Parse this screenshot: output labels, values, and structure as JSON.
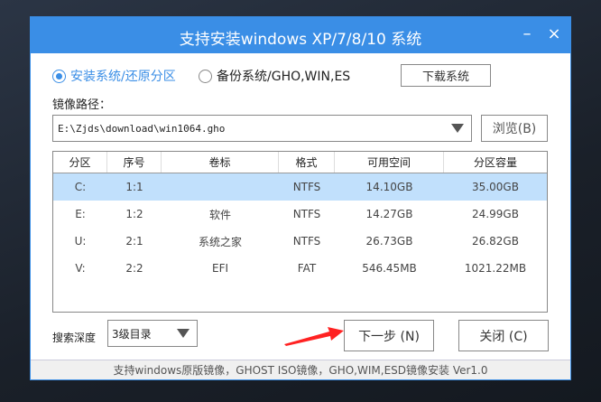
{
  "window": {
    "title": "支持安装windows XP/7/8/10 系统",
    "minimize": "–",
    "close": "×",
    "accent": "#3a8ee6"
  },
  "mode": {
    "install_label": "安装系统/还原分区",
    "backup_label": "备份系统/GHO,WIN,ES",
    "selected": "install"
  },
  "download_button": "下载系统",
  "image_path": {
    "label": "镜像路径：",
    "value": "E:\\Zjds\\download\\win1064.gho",
    "browse": "浏览(B)"
  },
  "table": {
    "headers": [
      "分区",
      "序号",
      "卷标",
      "格式",
      "可用空间",
      "分区容量"
    ],
    "rows": [
      [
        "C:",
        "1:1",
        "",
        "NTFS",
        "14.10GB",
        "35.00GB"
      ],
      [
        "E:",
        "1:2",
        "软件",
        "NTFS",
        "14.27GB",
        "24.99GB"
      ],
      [
        "U:",
        "2:1",
        "系统之家",
        "NTFS",
        "26.73GB",
        "26.82GB"
      ],
      [
        "V:",
        "2:2",
        "EFI",
        "FAT",
        "546.45MB",
        "1021.22MB"
      ]
    ],
    "selected_row": 0,
    "selected_color": "#c1e0fc"
  },
  "search_depth": {
    "label": "搜索深度",
    "value": "3级目录"
  },
  "next_button": "下一步 (N)",
  "close_button": "关闭 (C)",
  "footer": "支持windows原版镜像，GHOST ISO镜像，GHO,WIM,ESD镜像安装 Ver1.0"
}
